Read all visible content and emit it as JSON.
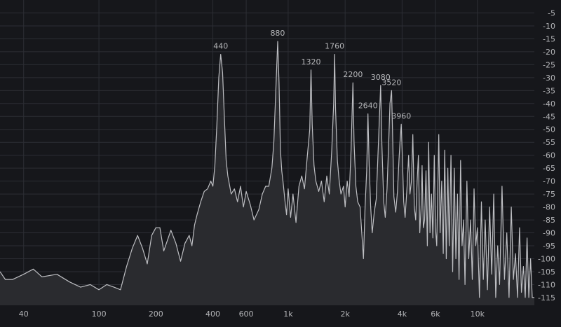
{
  "chart_data": {
    "type": "area",
    "title": "",
    "xlabel": "",
    "ylabel": "",
    "x_scale": "log",
    "xlim": [
      30,
      20000
    ],
    "ylim": [
      -118,
      0
    ],
    "grid": true,
    "x_ticks": [
      {
        "value": 40,
        "label": "40"
      },
      {
        "value": 100,
        "label": "100"
      },
      {
        "value": 200,
        "label": "200"
      },
      {
        "value": 400,
        "label": "400"
      },
      {
        "value": 600,
        "label": "600"
      },
      {
        "value": 1000,
        "label": "1k"
      },
      {
        "value": 2000,
        "label": "2k"
      },
      {
        "value": 4000,
        "label": "4k"
      },
      {
        "value": 6000,
        "label": "6k"
      },
      {
        "value": 10000,
        "label": "10k"
      }
    ],
    "y_ticks": [
      -5,
      -10,
      -15,
      -20,
      -25,
      -30,
      -35,
      -40,
      -45,
      -50,
      -55,
      -60,
      -65,
      -70,
      -75,
      -80,
      -85,
      -90,
      -95,
      -100,
      -105,
      -110,
      -115
    ],
    "peaks": [
      {
        "label": "440",
        "x": 440,
        "y": -21
      },
      {
        "label": "880",
        "x": 880,
        "y": -16
      },
      {
        "label": "1320",
        "x": 1320,
        "y": -27
      },
      {
        "label": "1760",
        "x": 1760,
        "y": -21
      },
      {
        "label": "2200",
        "x": 2200,
        "y": -32
      },
      {
        "label": "2640",
        "x": 2640,
        "y": -44
      },
      {
        "label": "3080",
        "x": 3080,
        "y": -33
      },
      {
        "label": "3520",
        "x": 3520,
        "y": -35
      },
      {
        "label": "3960",
        "x": 3960,
        "y": -48
      }
    ],
    "series": [
      {
        "values": [
          [
            30,
            -105
          ],
          [
            32,
            -108
          ],
          [
            35,
            -108
          ],
          [
            40,
            -106
          ],
          [
            45,
            -104
          ],
          [
            50,
            -107
          ],
          [
            60,
            -106
          ],
          [
            70,
            -109
          ],
          [
            80,
            -111
          ],
          [
            90,
            -110
          ],
          [
            100,
            -112
          ],
          [
            110,
            -110
          ],
          [
            120,
            -111
          ],
          [
            130,
            -112
          ],
          [
            140,
            -103
          ],
          [
            150,
            -96
          ],
          [
            160,
            -91
          ],
          [
            170,
            -96
          ],
          [
            180,
            -102
          ],
          [
            190,
            -91
          ],
          [
            200,
            -88
          ],
          [
            210,
            -88
          ],
          [
            220,
            -97
          ],
          [
            240,
            -89
          ],
          [
            255,
            -94
          ],
          [
            270,
            -101
          ],
          [
            285,
            -94
          ],
          [
            300,
            -91
          ],
          [
            310,
            -95
          ],
          [
            320,
            -87
          ],
          [
            330,
            -83
          ],
          [
            345,
            -78
          ],
          [
            360,
            -74
          ],
          [
            375,
            -73
          ],
          [
            390,
            -70
          ],
          [
            400,
            -72
          ],
          [
            410,
            -64
          ],
          [
            420,
            -48
          ],
          [
            430,
            -30
          ],
          [
            440,
            -21
          ],
          [
            450,
            -28
          ],
          [
            460,
            -45
          ],
          [
            470,
            -62
          ],
          [
            480,
            -68
          ],
          [
            500,
            -75
          ],
          [
            520,
            -73
          ],
          [
            540,
            -78
          ],
          [
            560,
            -72
          ],
          [
            580,
            -80
          ],
          [
            600,
            -74
          ],
          [
            630,
            -79
          ],
          [
            660,
            -85
          ],
          [
            700,
            -81
          ],
          [
            730,
            -75
          ],
          [
            760,
            -72
          ],
          [
            790,
            -72
          ],
          [
            820,
            -65
          ],
          [
            840,
            -55
          ],
          [
            860,
            -35
          ],
          [
            880,
            -16
          ],
          [
            895,
            -32
          ],
          [
            910,
            -58
          ],
          [
            925,
            -66
          ],
          [
            945,
            -72
          ],
          [
            960,
            -77
          ],
          [
            980,
            -83
          ],
          [
            1000,
            -73
          ],
          [
            1030,
            -84
          ],
          [
            1060,
            -75
          ],
          [
            1100,
            -86
          ],
          [
            1140,
            -72
          ],
          [
            1180,
            -68
          ],
          [
            1220,
            -73
          ],
          [
            1260,
            -61
          ],
          [
            1300,
            -50
          ],
          [
            1320,
            -27
          ],
          [
            1340,
            -48
          ],
          [
            1370,
            -64
          ],
          [
            1400,
            -70
          ],
          [
            1450,
            -74
          ],
          [
            1500,
            -70
          ],
          [
            1550,
            -78
          ],
          [
            1600,
            -68
          ],
          [
            1650,
            -75
          ],
          [
            1700,
            -58
          ],
          [
            1740,
            -40
          ],
          [
            1760,
            -21
          ],
          [
            1780,
            -42
          ],
          [
            1820,
            -62
          ],
          [
            1860,
            -70
          ],
          [
            1900,
            -75
          ],
          [
            1960,
            -72
          ],
          [
            2000,
            -80
          ],
          [
            2050,
            -70
          ],
          [
            2100,
            -76
          ],
          [
            2150,
            -58
          ],
          [
            2200,
            -32
          ],
          [
            2230,
            -55
          ],
          [
            2280,
            -72
          ],
          [
            2330,
            -78
          ],
          [
            2400,
            -80
          ],
          [
            2450,
            -90
          ],
          [
            2500,
            -100
          ],
          [
            2550,
            -80
          ],
          [
            2600,
            -66
          ],
          [
            2640,
            -44
          ],
          [
            2680,
            -64
          ],
          [
            2730,
            -80
          ],
          [
            2780,
            -90
          ],
          [
            2850,
            -82
          ],
          [
            2920,
            -77
          ],
          [
            3000,
            -55
          ],
          [
            3080,
            -33
          ],
          [
            3130,
            -56
          ],
          [
            3200,
            -78
          ],
          [
            3260,
            -84
          ],
          [
            3330,
            -73
          ],
          [
            3400,
            -55
          ],
          [
            3450,
            -40
          ],
          [
            3520,
            -35
          ],
          [
            3560,
            -50
          ],
          [
            3620,
            -76
          ],
          [
            3700,
            -82
          ],
          [
            3780,
            -74
          ],
          [
            3850,
            -62
          ],
          [
            3900,
            -55
          ],
          [
            3960,
            -48
          ],
          [
            4010,
            -60
          ],
          [
            4080,
            -78
          ],
          [
            4150,
            -84
          ],
          [
            4250,
            -72
          ],
          [
            4330,
            -60
          ],
          [
            4400,
            -75
          ],
          [
            4480,
            -70
          ],
          [
            4560,
            -52
          ],
          [
            4640,
            -80
          ],
          [
            4720,
            -85
          ],
          [
            4800,
            -70
          ],
          [
            4880,
            -60
          ],
          [
            4960,
            -90
          ],
          [
            5040,
            -80
          ],
          [
            5100,
            -64
          ],
          [
            5180,
            -88
          ],
          [
            5260,
            -85
          ],
          [
            5350,
            -66
          ],
          [
            5440,
            -95
          ],
          [
            5530,
            -55
          ],
          [
            5620,
            -90
          ],
          [
            5720,
            -75
          ],
          [
            5820,
            -92
          ],
          [
            5920,
            -60
          ],
          [
            6000,
            -88
          ],
          [
            6100,
            -95
          ],
          [
            6250,
            -52
          ],
          [
            6350,
            -90
          ],
          [
            6480,
            -70
          ],
          [
            6600,
            -98
          ],
          [
            6720,
            -58
          ],
          [
            6850,
            -100
          ],
          [
            6980,
            -65
          ],
          [
            7100,
            -95
          ],
          [
            7250,
            -60
          ],
          [
            7400,
            -105
          ],
          [
            7550,
            -65
          ],
          [
            7700,
            -100
          ],
          [
            7850,
            -75
          ],
          [
            8000,
            -108
          ],
          [
            8150,
            -62
          ],
          [
            8300,
            -95
          ],
          [
            8450,
            -85
          ],
          [
            8600,
            -110
          ],
          [
            8800,
            -70
          ],
          [
            9000,
            -100
          ],
          [
            9200,
            -85
          ],
          [
            9400,
            -108
          ],
          [
            9600,
            -73
          ],
          [
            9800,
            -95
          ],
          [
            10000,
            -88
          ],
          [
            10250,
            -115
          ],
          [
            10500,
            -78
          ],
          [
            10750,
            -108
          ],
          [
            11000,
            -85
          ],
          [
            11300,
            -112
          ],
          [
            11600,
            -80
          ],
          [
            11900,
            -106
          ],
          [
            12200,
            -75
          ],
          [
            12500,
            -115
          ],
          [
            12800,
            -95
          ],
          [
            13100,
            -110
          ],
          [
            13500,
            -72
          ],
          [
            13900,
            -108
          ],
          [
            14300,
            -90
          ],
          [
            14700,
            -115
          ],
          [
            15100,
            -80
          ],
          [
            15500,
            -108
          ],
          [
            15900,
            -98
          ],
          [
            16300,
            -115
          ],
          [
            16700,
            -88
          ],
          [
            17100,
            -113
          ],
          [
            17500,
            -103
          ],
          [
            17900,
            -115
          ],
          [
            18300,
            -92
          ],
          [
            18700,
            -115
          ],
          [
            19100,
            -100
          ],
          [
            19500,
            -115
          ],
          [
            20000,
            -115
          ]
        ]
      }
    ]
  },
  "colors": {
    "background": "#16171b",
    "grid": "#2c2e34",
    "fill": "#2a2b2f",
    "line": "#bdbec2",
    "text": "#b5b6b9"
  }
}
